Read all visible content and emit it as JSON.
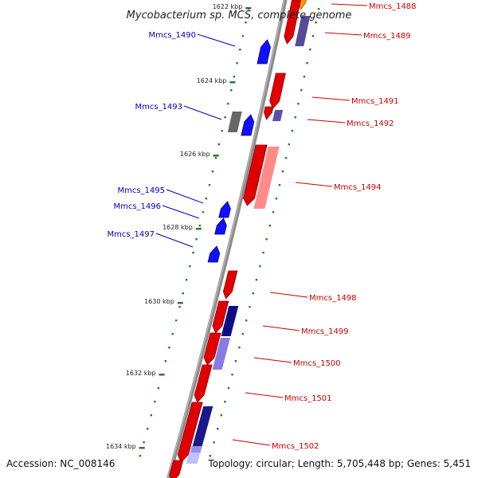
{
  "title": "Mycobacterium sp. MCS, complete genome",
  "footer": {
    "accession": "Accession: NC_008146",
    "summary": "Topology: circular; Length: 5,705,448 bp; Genes: 5,451"
  },
  "colors": {
    "forward": "#e00000",
    "reverse": "#1010ff",
    "forward_label": "#cc0000",
    "reverse_label": "#0000bb",
    "backbone": "#8c8c8c",
    "ticks": "#2a7a2a"
  },
  "kbp_marks": [
    {
      "label": "1622 kbp"
    },
    {
      "label": "1624 kbp"
    },
    {
      "label": "1626 kbp"
    },
    {
      "label": "1628 kbp"
    },
    {
      "label": "1630 kbp"
    },
    {
      "label": "1632 kbp"
    },
    {
      "label": "1634 kbp"
    }
  ],
  "genes": [
    {
      "name": "Mmcs_1488",
      "strand": "forward"
    },
    {
      "name": "Mmcs_1489",
      "strand": "forward"
    },
    {
      "name": "Mmcs_1490",
      "strand": "reverse"
    },
    {
      "name": "Mmcs_1491",
      "strand": "forward"
    },
    {
      "name": "Mmcs_1492",
      "strand": "forward"
    },
    {
      "name": "Mmcs_1493",
      "strand": "reverse"
    },
    {
      "name": "Mmcs_1494",
      "strand": "forward"
    },
    {
      "name": "Mmcs_1495",
      "strand": "reverse"
    },
    {
      "name": "Mmcs_1496",
      "strand": "reverse"
    },
    {
      "name": "Mmcs_1497",
      "strand": "reverse"
    },
    {
      "name": "Mmcs_1498",
      "strand": "forward"
    },
    {
      "name": "Mmcs_1499",
      "strand": "forward"
    },
    {
      "name": "Mmcs_1500",
      "strand": "forward"
    },
    {
      "name": "Mmcs_1501",
      "strand": "forward"
    },
    {
      "name": "Mmcs_1502",
      "strand": "forward"
    }
  ]
}
